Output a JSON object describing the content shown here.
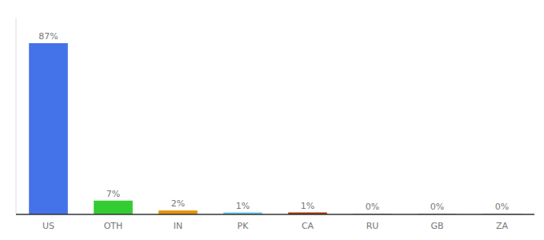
{
  "chart_data": {
    "type": "bar",
    "categories": [
      "US",
      "OTH",
      "IN",
      "PK",
      "CA",
      "RU",
      "GB",
      "ZA"
    ],
    "values": [
      87,
      7,
      2,
      1,
      1,
      0.3,
      0.3,
      0.3
    ],
    "value_labels": [
      "87%",
      "7%",
      "2%",
      "1%",
      "1%",
      "0%",
      "0%",
      "0%"
    ],
    "colors": [
      "#4472e8",
      "#33cc33",
      "#e8930a",
      "#66ccee",
      "#aa3300",
      "#aaaaaa",
      "#aaaaaa",
      "#aaaaaa"
    ],
    "ylim": [
      0,
      100
    ],
    "data_labels": true,
    "tick_labels": "x",
    "grid": false
  }
}
